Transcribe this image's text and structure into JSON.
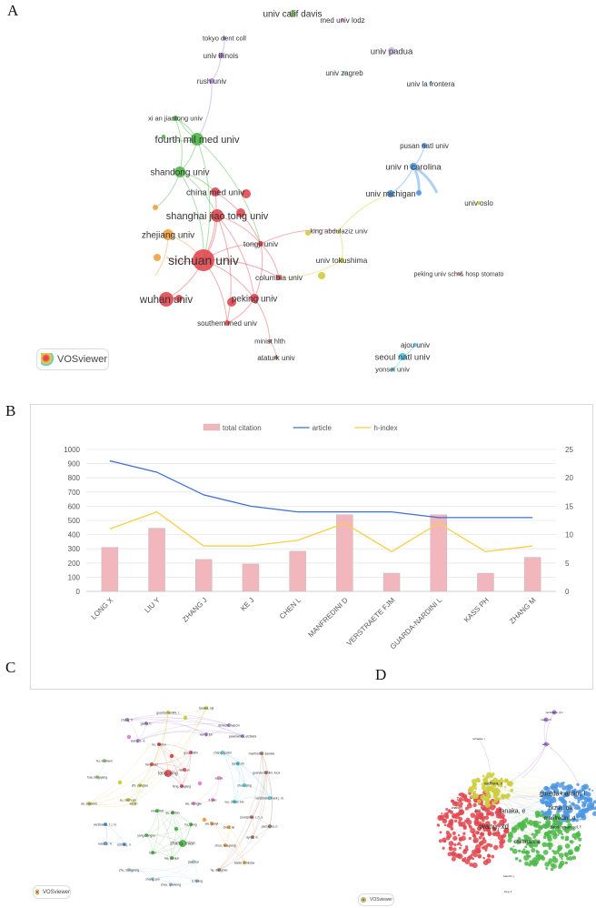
{
  "panels": {
    "a": "A",
    "b": "B",
    "c": "C",
    "d": "D"
  },
  "vosviewer_label": "VOSviewer",
  "colors": {
    "red": "#e2474f",
    "green": "#4cb848",
    "blue": "#4c97e0",
    "yellow": "#cdcd3c",
    "purple": "#a97fd8",
    "orange": "#f2a03f",
    "cyan": "#46c6dd",
    "brown": "#b67a6a",
    "pink": "#e680d2",
    "lightgreen": "#96d67e",
    "lavender": "#cbb6e8",
    "lightblue": "#9fd0e3"
  },
  "network_a": {
    "nodes": [
      {
        "label": "univ calif davis",
        "c": "lightgreen"
      },
      {
        "label": "med univ lodz",
        "c": "pink"
      },
      {
        "label": "tokyo dent coll",
        "c": "purple"
      },
      {
        "label": "univ illinois",
        "c": "purple"
      },
      {
        "label": "rush univ",
        "c": "purple"
      },
      {
        "label": "univ padua",
        "c": "lavender"
      },
      {
        "label": "univ zagreb",
        "c": "lightblue"
      },
      {
        "label": "univ la frontera",
        "c": "lightblue"
      },
      {
        "label": "xi an jiaotong univ",
        "c": "green"
      },
      {
        "label": "fourth mil med univ",
        "c": "green"
      },
      {
        "label": "shandong univ",
        "c": "green"
      },
      {
        "label": "china med univ",
        "c": "red"
      },
      {
        "label": "shanghai jiao tong univ",
        "c": "red"
      },
      {
        "label": "zhejiang univ",
        "c": "orange"
      },
      {
        "label": "sichuan univ",
        "c": "red"
      },
      {
        "label": "tongji univ",
        "c": "red"
      },
      {
        "label": "king abdulaziz univ",
        "c": "yellow"
      },
      {
        "label": "univ tokushima",
        "c": "yellow"
      },
      {
        "label": "columbia univ",
        "c": "red"
      },
      {
        "label": "wuhan univ",
        "c": "red"
      },
      {
        "label": "peking univ",
        "c": "red"
      },
      {
        "label": "southern med univ",
        "c": "red"
      },
      {
        "label": "minist hlth",
        "c": "brown"
      },
      {
        "label": "ataturk univ",
        "c": "brown"
      },
      {
        "label": "pusan natl univ",
        "c": "blue"
      },
      {
        "label": "univ n carolina",
        "c": "blue"
      },
      {
        "label": "univ michigan",
        "c": "blue"
      },
      {
        "label": "univ oslo",
        "c": "yellow"
      },
      {
        "label": "peking univ sch & hosp stomato",
        "c": "brown"
      },
      {
        "label": "ajou univ",
        "c": "cyan"
      },
      {
        "label": "seoul natl univ",
        "c": "cyan"
      },
      {
        "label": "yonsei univ",
        "c": "cyan"
      }
    ]
  },
  "chart_data": {
    "type": "bar",
    "title": "",
    "categories": [
      "LONG X",
      "LIU Y",
      "ZHANG J",
      "KE J",
      "CHEN L",
      "MANFREDINI D",
      "VERSTRAETE FJM",
      "GUARDA-NARDINI L",
      "KASS PH",
      "ZHANG M"
    ],
    "series": [
      {
        "name": "total citation",
        "type": "bar",
        "axis": "left",
        "color": "#f2b6bd",
        "values": [
          310,
          445,
          225,
          193,
          283,
          540,
          128,
          540,
          128,
          240
        ]
      },
      {
        "name": "article",
        "type": "line",
        "axis": "right",
        "color": "#3e6fd8",
        "values": [
          23,
          21,
          17,
          15,
          14,
          14,
          14,
          13,
          13,
          13
        ]
      },
      {
        "name": "h-index",
        "type": "line",
        "axis": "right",
        "color": "#f7d046",
        "values": [
          11,
          14,
          8,
          8,
          9,
          12,
          7,
          12,
          7,
          8
        ]
      }
    ],
    "y_left": {
      "min": 0,
      "max": 1000,
      "ticks": [
        "0",
        "100",
        "200",
        "300",
        "400",
        "500",
        "600",
        "700",
        "800",
        "900",
        "1000"
      ]
    },
    "y_right": {
      "min": 0,
      "max": 25,
      "ticks": [
        "0",
        "5",
        "10",
        "15",
        "20",
        "25"
      ]
    },
    "legend": "top-center",
    "grid": true
  },
  "network_c": {
    "labels": [
      {
        "label": "tanaka, eiji",
        "c": "yellow"
      },
      {
        "label": "guarda-nardini, l.",
        "c": "yellow"
      },
      {
        "label": "zhang, h.",
        "c": "purple"
      },
      {
        "label": "ganty, h.",
        "c": "purple"
      },
      {
        "label": "wang, s. d.",
        "c": "purple"
      },
      {
        "label": "denecki, marcin",
        "c": "purple"
      },
      {
        "label": "wang, jun",
        "c": "purple"
      },
      {
        "label": "pawlowska, elzbieta",
        "c": "purple"
      },
      {
        "label": "hu, minhui",
        "c": "red"
      },
      {
        "label": "guo, huilin",
        "c": "red"
      },
      {
        "label": "manfredini, daniele",
        "c": "brown"
      },
      {
        "label": "zhang, guixin",
        "c": "cyan"
      },
      {
        "label": "yang, chi",
        "c": "cyan"
      },
      {
        "label": "liu, xiaowen",
        "c": "lightgreen"
      },
      {
        "label": "fang, wei",
        "c": "red"
      },
      {
        "label": "long, xing",
        "c": "red"
      },
      {
        "label": "tan, jun",
        "c": "red"
      },
      {
        "label": "guarda-nardini, luca",
        "c": "brown"
      },
      {
        "label": "hua, longqiang",
        "c": "lightgreen"
      },
      {
        "label": "zhou, qing",
        "c": "cyan"
      },
      {
        "label": "xu, jia",
        "c": "pink"
      },
      {
        "label": "feng, yuqiang",
        "c": "red"
      },
      {
        "label": "shi, zongtao",
        "c": "yellow"
      },
      {
        "label": "xu, nachuan",
        "c": "yellow"
      },
      {
        "label": "ke, jin",
        "c": "yellow"
      },
      {
        "label": "ali, sajjamin",
        "c": "yellow"
      },
      {
        "label": "li, yan",
        "c": "pink"
      },
      {
        "label": "wu, mengjie",
        "c": "pink"
      },
      {
        "label": "wu, chuan bin",
        "c": "cyan"
      },
      {
        "label": "verstraete, frank j. m.",
        "c": "cyan"
      },
      {
        "label": "miao, fuli",
        "c": "green"
      },
      {
        "label": "yu, weibin",
        "c": "green"
      },
      {
        "label": "verstraete, f. j. m.",
        "c": "blue"
      },
      {
        "label": "hu, gang",
        "c": "green"
      },
      {
        "label": "wu, gaoyi",
        "c": "orange"
      },
      {
        "label": "chen, lei",
        "c": "orange"
      },
      {
        "label": "cevidanes, l. h. s.",
        "c": "brown"
      },
      {
        "label": "paniagua, b.",
        "c": "brown"
      },
      {
        "label": "dyrek, m.",
        "c": "brown"
      },
      {
        "label": "yang, rongsu",
        "c": "green"
      },
      {
        "label": "zhang, mian",
        "c": "green"
      },
      {
        "label": "zhou, huaqiang",
        "c": "orange"
      },
      {
        "label": "kass, p. h.",
        "c": "blue"
      },
      {
        "label": "schilb, j. n.",
        "c": "blue"
      },
      {
        "label": "li, jun",
        "c": "green"
      },
      {
        "label": "ma, yanjun",
        "c": "green"
      },
      {
        "label": "jiao, kai",
        "c": "lightblue"
      },
      {
        "label": "badel, tomislav",
        "c": "orange"
      },
      {
        "label": "zhu, songpong",
        "c": "lightblue"
      },
      {
        "label": "he, dongmei",
        "c": "brown"
      },
      {
        "label": "zhang, jun",
        "c": "lightblue"
      },
      {
        "label": "li, lijiang",
        "c": "lightblue"
      },
      {
        "label": "zhou, qianlong",
        "c": "lightblue"
      }
    ]
  },
  "network_d": {
    "labels": [
      {
        "label": "verstraete, fjm",
        "c": "purple"
      },
      {
        "label": "kass, ph",
        "c": "purple"
      },
      {
        "label": "arzi, b",
        "c": "purple"
      },
      {
        "label": "schaefer, l",
        "c": "yellow"
      },
      {
        "label": "guarda-nardini, l",
        "c": "blue"
      },
      {
        "label": "nitzan, dw",
        "c": "blue"
      },
      {
        "label": "manfredini, d",
        "c": "green"
      },
      {
        "label": "tanaka, e",
        "c": "green"
      },
      {
        "label": "wang, xd",
        "c": "red"
      },
      {
        "label": "chiffman, e",
        "c": "green"
      },
      {
        "label": "dworkin samuel, f",
        "c": "green"
      },
      {
        "label": "vadhwa, s",
        "c": "yellow"
      },
      {
        "label": "jiao, k",
        "c": "red"
      },
      {
        "label": "zhang, j",
        "c": "red"
      },
      {
        "label": "bianchi, j",
        "c": "green"
      },
      {
        "label": "hung, lf",
        "c": "green"
      }
    ]
  }
}
